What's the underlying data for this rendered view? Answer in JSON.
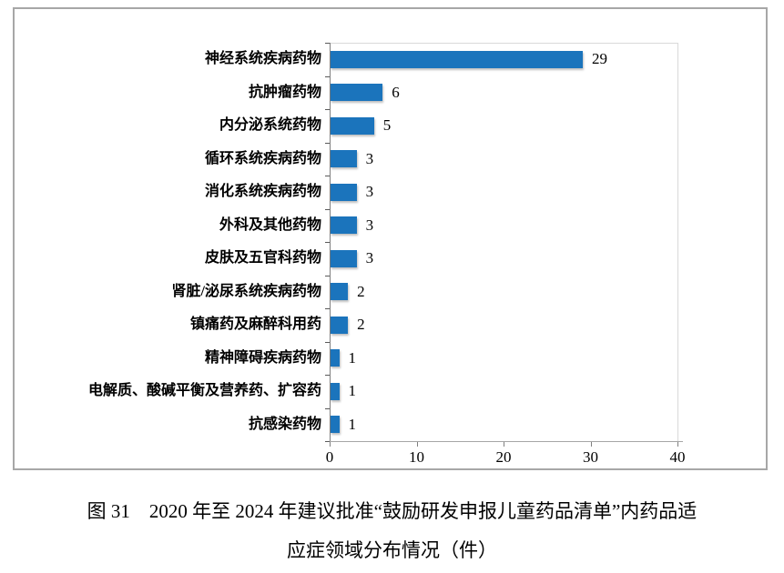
{
  "figure": {
    "caption_line1": "图 31　2020 年至 2024 年建议批准“鼓励研发申报儿童药品清单”内药品适",
    "caption_line2": "应症领域分布情况（件）"
  },
  "colors": {
    "bar": "#1b74bc",
    "outer_border": "#a7a7a7",
    "plot_border": "#d9d9d9",
    "axis": "#7f7f7f"
  },
  "chart_data": {
    "type": "bar",
    "orientation": "horizontal",
    "title": "",
    "xlabel": "",
    "ylabel": "",
    "categories": [
      "神经系统疾病药物",
      "抗肿瘤药物",
      "内分泌系统药物",
      "循环系统疾病药物",
      "消化系统疾病药物",
      "外科及其他药物",
      "皮肤及五官科药物",
      "肾脏/泌尿系统疾病药物",
      "镇痛药及麻醉科用药",
      "精神障碍疾病药物",
      "电解质、酸碱平衡及营养药、扩容药",
      "抗感染药物"
    ],
    "values": [
      29,
      6,
      5,
      3,
      3,
      3,
      3,
      2,
      2,
      1,
      1,
      1
    ],
    "data_labels": [
      29,
      6,
      5,
      3,
      3,
      3,
      3,
      2,
      2,
      1,
      1,
      1
    ],
    "xticks": [
      0,
      10,
      20,
      30,
      40
    ],
    "xlim": [
      0,
      40
    ],
    "grid": false,
    "legend": false,
    "bar_color": "#1b74bc"
  }
}
